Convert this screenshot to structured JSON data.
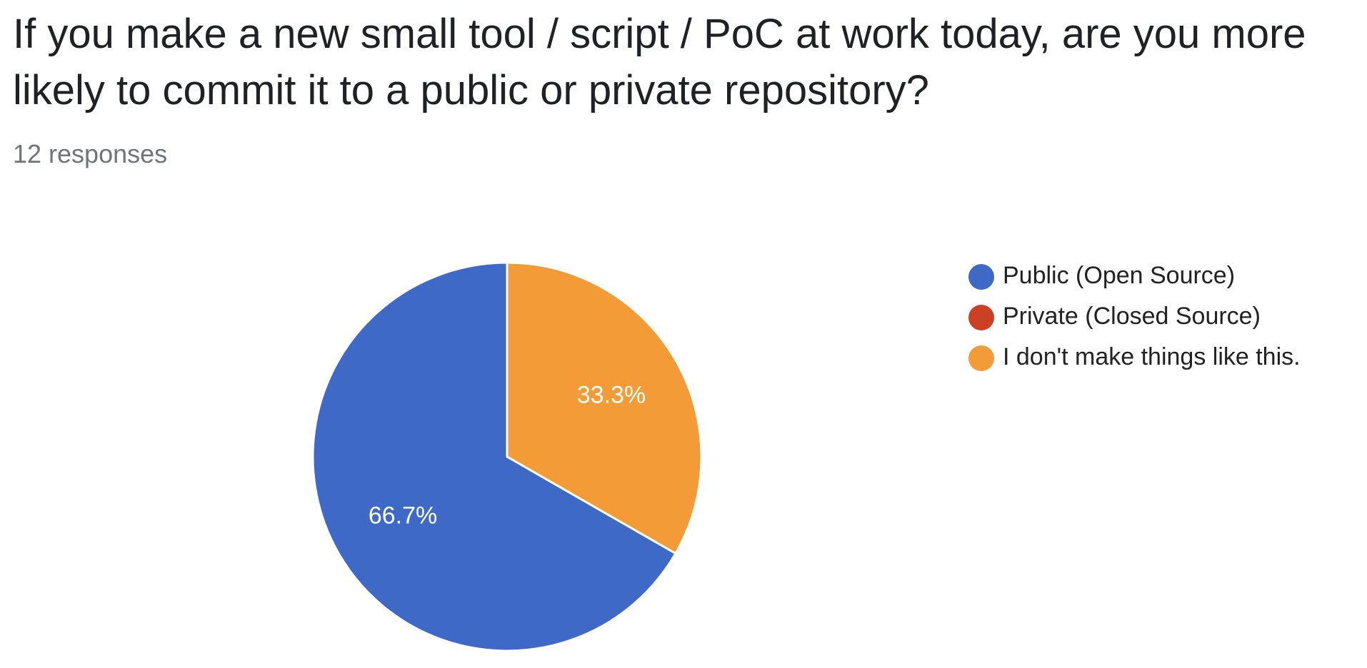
{
  "question": {
    "title": "If you make a new small tool / script / PoC at work today, are you more likely to commit it to a public or private repository?",
    "responses_label": "12 responses"
  },
  "chart_data": {
    "type": "pie",
    "categories": [
      "Public (Open Source)",
      "Private (Closed Source)",
      "I don't make things like this."
    ],
    "values": [
      66.7,
      0,
      33.3
    ],
    "data_labels": [
      "66.7%",
      "",
      "33.3%"
    ],
    "colors": [
      "#3e69c7",
      "#cc4125",
      "#f29b37"
    ],
    "legend_position": "right"
  }
}
